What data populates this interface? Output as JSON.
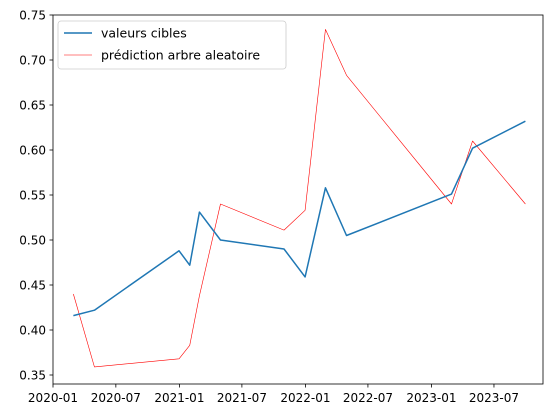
{
  "chart_data": {
    "type": "line",
    "x_axis_type": "date",
    "xlim": [
      "2020-01-01",
      "2023-11-20"
    ],
    "ylim": [
      0.34,
      0.75
    ],
    "x_ticks": [
      {
        "date": "2020-01-01",
        "label": "2020-01"
      },
      {
        "date": "2020-07-01",
        "label": "2020-07"
      },
      {
        "date": "2021-01-01",
        "label": "2021-01"
      },
      {
        "date": "2021-07-01",
        "label": "2021-07"
      },
      {
        "date": "2022-01-01",
        "label": "2022-01"
      },
      {
        "date": "2022-07-01",
        "label": "2022-07"
      },
      {
        "date": "2023-01-01",
        "label": "2023-01"
      },
      {
        "date": "2023-07-01",
        "label": "2023-07"
      }
    ],
    "y_ticks": [
      {
        "value": 0.35,
        "label": "0.35"
      },
      {
        "value": 0.4,
        "label": "0.40"
      },
      {
        "value": 0.45,
        "label": "0.45"
      },
      {
        "value": 0.5,
        "label": "0.50"
      },
      {
        "value": 0.55,
        "label": "0.55"
      },
      {
        "value": 0.6,
        "label": "0.60"
      },
      {
        "value": 0.65,
        "label": "0.65"
      },
      {
        "value": 0.7,
        "label": "0.70"
      },
      {
        "value": 0.75,
        "label": "0.75"
      }
    ],
    "grid": false,
    "legend_position": "top-left",
    "series": [
      {
        "name": "valeurs cibles",
        "color": "#1f77b4",
        "line_width": 1.5,
        "points": [
          {
            "x": "2020-02-29",
            "y": 0.416
          },
          {
            "x": "2020-04-30",
            "y": 0.422
          },
          {
            "x": "2020-12-31",
            "y": 0.488
          },
          {
            "x": "2021-01-31",
            "y": 0.472
          },
          {
            "x": "2021-02-28",
            "y": 0.531
          },
          {
            "x": "2021-04-30",
            "y": 0.5
          },
          {
            "x": "2021-10-31",
            "y": 0.49
          },
          {
            "x": "2021-12-31",
            "y": 0.459
          },
          {
            "x": "2022-02-28",
            "y": 0.558
          },
          {
            "x": "2022-04-30",
            "y": 0.505
          },
          {
            "x": "2023-02-28",
            "y": 0.551
          },
          {
            "x": "2023-04-30",
            "y": 0.602
          },
          {
            "x": "2023-09-30",
            "y": 0.632
          }
        ]
      },
      {
        "name": "prédiction arbre aleatoire",
        "color": "#ff0000",
        "line_width": 0.6,
        "points": [
          {
            "x": "2020-02-29",
            "y": 0.44
          },
          {
            "x": "2020-04-30",
            "y": 0.359
          },
          {
            "x": "2020-12-31",
            "y": 0.368
          },
          {
            "x": "2021-01-31",
            "y": 0.383
          },
          {
            "x": "2021-02-28",
            "y": 0.438
          },
          {
            "x": "2021-04-30",
            "y": 0.54
          },
          {
            "x": "2021-10-31",
            "y": 0.511
          },
          {
            "x": "2021-12-31",
            "y": 0.533
          },
          {
            "x": "2022-02-28",
            "y": 0.734
          },
          {
            "x": "2022-04-30",
            "y": 0.683
          },
          {
            "x": "2023-02-28",
            "y": 0.54
          },
          {
            "x": "2023-04-30",
            "y": 0.61
          },
          {
            "x": "2023-09-30",
            "y": 0.54
          }
        ]
      }
    ]
  }
}
